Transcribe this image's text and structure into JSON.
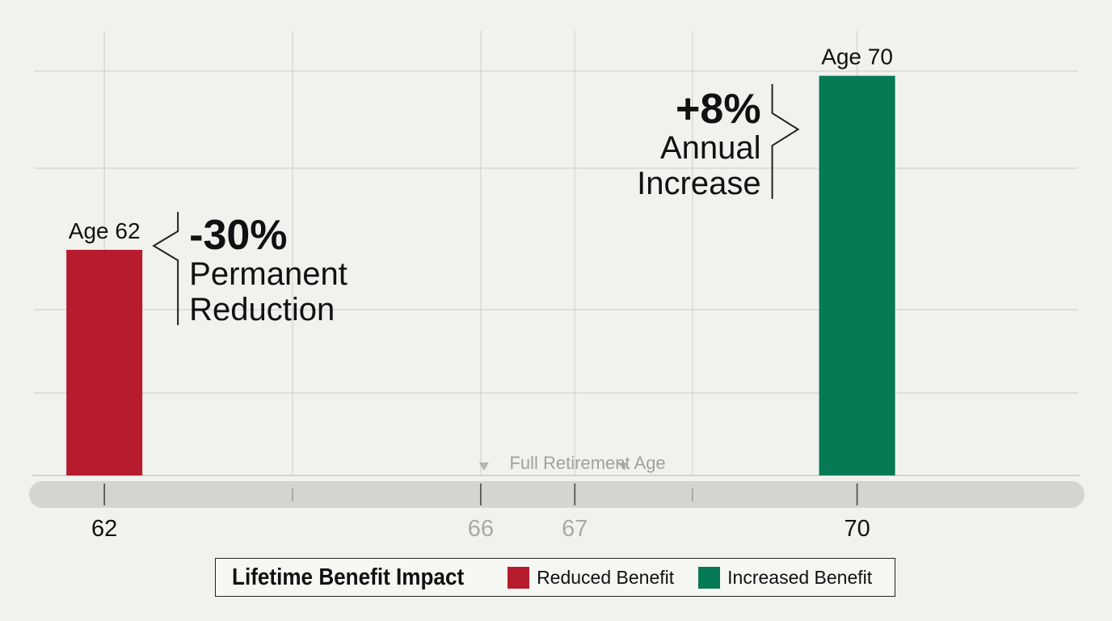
{
  "chart_data": {
    "type": "bar",
    "x_ticks": [
      62,
      66,
      67,
      70
    ],
    "x_axis_range": [
      61.2,
      72.4
    ],
    "y_range": [
      0,
      1.45
    ],
    "grid": true,
    "bars": [
      {
        "x": 62,
        "value": 0.7,
        "label": "Age 62",
        "color": "#b71c2e",
        "series": "Reduced Benefit"
      },
      {
        "x": 70,
        "value": 1.24,
        "label": "Age 70",
        "color": "#067a54",
        "series": "Increased Benefit"
      }
    ],
    "annotations": [
      {
        "id": "reduction",
        "big": "-30%",
        "lines": [
          "Permanent",
          "Reduction"
        ],
        "bar": 0
      },
      {
        "id": "increase",
        "big": "+8%",
        "lines": [
          "Annual",
          "Increase"
        ],
        "bar": 1
      }
    ],
    "fra_label": "Full Retirement Age",
    "fra_range": [
      66,
      67
    ],
    "legend": {
      "title": "Lifetime Benefit Impact",
      "position": "bottom-center",
      "items": [
        {
          "label": "Reduced Benefit",
          "color": "#b71c2e"
        },
        {
          "label": "Increased Benefit",
          "color": "#067a54"
        }
      ]
    }
  }
}
